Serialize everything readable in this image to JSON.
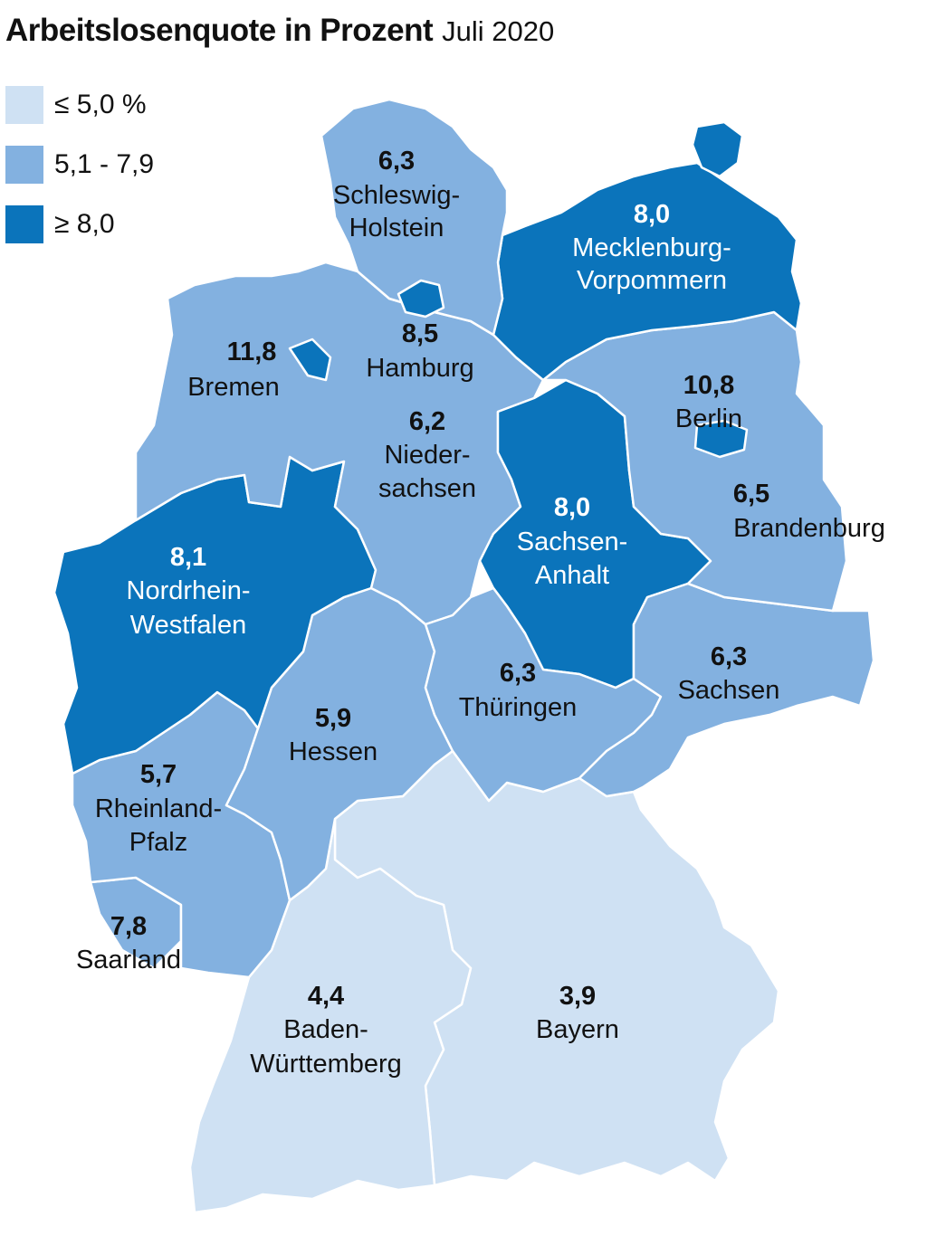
{
  "header": {
    "title": "Arbeitslosenquote in Prozent",
    "subtitle": "Juli 2020"
  },
  "legend": [
    {
      "label": "≤ 5,0 %",
      "color": "#cfe1f3"
    },
    {
      "label": "5,1 - 7,9",
      "color": "#83b1e0"
    },
    {
      "label": "≥ 8,0",
      "color": "#0b74bb"
    }
  ],
  "states": {
    "schleswig_holstein": {
      "value": "6,3",
      "name": [
        "Schleswig-",
        "Holstein"
      ]
    },
    "mecklenburg_vorpommern": {
      "value": "8,0",
      "name": [
        "Mecklenburg-",
        "Vorpommern"
      ]
    },
    "hamburg": {
      "value": "8,5",
      "name": [
        "Hamburg"
      ]
    },
    "bremen": {
      "value": "11,8",
      "name": [
        "Bremen"
      ]
    },
    "niedersachsen": {
      "value": "6,2",
      "name": [
        "Nieder-",
        "sachsen"
      ]
    },
    "berlin": {
      "value": "10,8",
      "name": [
        "Berlin"
      ]
    },
    "brandenburg": {
      "value": "6,5",
      "name": [
        "Brandenburg"
      ]
    },
    "sachsen_anhalt": {
      "value": "8,0",
      "name": [
        "Sachsen-",
        "Anhalt"
      ]
    },
    "nordrhein_westfalen": {
      "value": "8,1",
      "name": [
        "Nordrhein-",
        "Westfalen"
      ]
    },
    "sachsen": {
      "value": "6,3",
      "name": [
        "Sachsen"
      ]
    },
    "thueringen": {
      "value": "6,3",
      "name": [
        "Thüringen"
      ]
    },
    "hessen": {
      "value": "5,9",
      "name": [
        "Hessen"
      ]
    },
    "rheinland_pfalz": {
      "value": "5,7",
      "name": [
        "Rheinland-",
        "Pfalz"
      ]
    },
    "saarland": {
      "value": "7,8",
      "name": [
        "Saarland"
      ]
    },
    "baden_wuerttemberg": {
      "value": "4,4",
      "name": [
        "Baden-",
        "Württemberg"
      ]
    },
    "bayern": {
      "value": "3,9",
      "name": [
        "Bayern"
      ]
    }
  }
}
